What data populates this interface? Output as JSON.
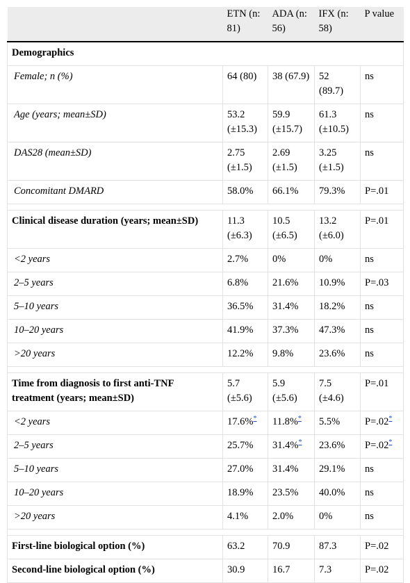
{
  "table": {
    "header": [
      "",
      "ETN (n: 81)",
      "ADA (n: 56)",
      "IFX (n: 58)",
      "P value"
    ],
    "sections": [
      {
        "bold": [
          [
            "Demographics"
          ]
        ],
        "rows": [
          [
            "Female; n (%)",
            "64 (80)",
            "38 (67.9)",
            "52 (89.7)",
            "ns"
          ],
          [
            "Age (years; mean±SD)",
            "53.2 (±15.3)",
            "59.9 (±15.7)",
            "61.3 (±10.5)",
            "ns"
          ],
          [
            "DAS28 (mean±SD)",
            "2.75 (±1.5)",
            "2.69 (±1.5)",
            "3.25 (±1.5)",
            "ns"
          ],
          [
            "Concomitant DMARD",
            "58.0%",
            "66.1%",
            "79.3%",
            "P=.01"
          ]
        ]
      },
      {
        "bold": [
          [
            "Clinical disease duration (years; mean±SD)",
            "11.3 (±6.3)",
            "10.5 (±6.5)",
            "13.2 (±6.0)",
            "P=.01"
          ]
        ],
        "rows": [
          [
            "<2 years",
            "2.7%",
            "0%",
            "0%",
            "ns"
          ],
          [
            "2–5 years",
            "6.8%",
            "21.6%",
            "10.9%",
            "P=.03"
          ],
          [
            "5–10 years",
            "36.5%",
            "31.4%",
            "18.2%",
            "ns"
          ],
          [
            "10–20 years",
            "41.9%",
            "37.3%",
            "47.3%",
            "ns"
          ],
          [
            ">20 years",
            "12.2%",
            "9.8%",
            "23.6%",
            "ns"
          ]
        ]
      },
      {
        "bold": [
          [
            "Time from diagnosis to first anti-TNF treatment (years; mean±SD)",
            "5.7 (±5.6)",
            "5.9 (±5.6)",
            "7.5 (±4.6)",
            "P=.01"
          ]
        ],
        "rows": [
          [
            "<2 years",
            {
              "text": "17.6%",
              "note": "*"
            },
            {
              "text": "11.8%",
              "note": "*"
            },
            "5.5%",
            {
              "text": "P=.02",
              "note": "*"
            }
          ],
          [
            "2–5 years",
            "25.7%",
            {
              "text": "31.4%",
              "note": "*"
            },
            "23.6%",
            {
              "text": "P=.02",
              "note": "*"
            }
          ],
          [
            "5–10 years",
            "27.0%",
            "31.4%",
            "29.1%",
            "ns"
          ],
          [
            "10–20 years",
            "18.9%",
            "23.5%",
            "40.0%",
            "ns"
          ],
          [
            ">20 years",
            "4.1%",
            "2.0%",
            "0%",
            "ns"
          ]
        ]
      },
      {
        "bold": [
          [
            "First-line biological option (%)",
            "63.2",
            "70.9",
            "87.3",
            "P=.02"
          ],
          [
            "Second-line biological option (%)",
            "30.9",
            "16.7",
            "7.3",
            "P=.02"
          ]
        ]
      }
    ]
  }
}
